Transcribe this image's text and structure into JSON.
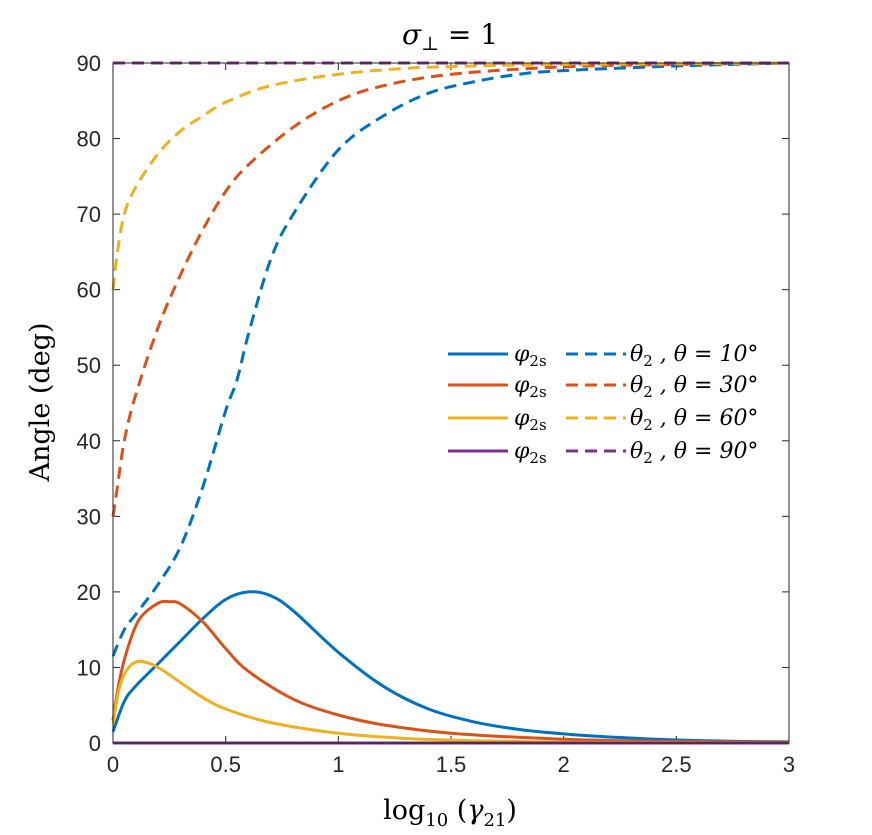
{
  "chart_data": {
    "type": "line",
    "title": "σ⊥ = 1",
    "title_parts": {
      "sym": "σ",
      "sub": "⊥",
      "rest": " = 1"
    },
    "xlabel": "log10 (γ21)",
    "xlabel_parts": {
      "fn": "log",
      "fn_sub": "10",
      "open": " (",
      "sym": "γ",
      "sym_sub": "21",
      "close": ")"
    },
    "ylabel": "Angle (deg)",
    "xlim": [
      0,
      3
    ],
    "ylim": [
      0,
      90
    ],
    "xticks": [
      0,
      0.5,
      1,
      1.5,
      2,
      2.5,
      3
    ],
    "xtick_labels": [
      "0",
      "0.5",
      "1",
      "1.5",
      "2",
      "2.5",
      "3"
    ],
    "yticks": [
      0,
      10,
      20,
      30,
      40,
      50,
      60,
      70,
      80,
      90
    ],
    "ytick_labels": [
      "0",
      "10",
      "20",
      "30",
      "40",
      "50",
      "60",
      "70",
      "80",
      "90"
    ],
    "legend_position": "right-center",
    "series": [
      {
        "name": "φ2s, θ = 10°",
        "theta_label": "θ = 10°",
        "kind": "phi",
        "style": "solid",
        "color": "#0072BD",
        "x": [
          0,
          0.05,
          0.1,
          0.2,
          0.3,
          0.4,
          0.5,
          0.6,
          0.7,
          0.8,
          1.0,
          1.2,
          1.4,
          1.6,
          1.8,
          2.0,
          2.2,
          2.5,
          2.8,
          3.0
        ],
        "y": [
          1.5,
          5.5,
          7.5,
          10.5,
          13.5,
          16.5,
          19,
          20,
          19.5,
          17.5,
          12,
          7.5,
          4.5,
          2.8,
          1.8,
          1.2,
          0.8,
          0.4,
          0.2,
          0.15
        ]
      },
      {
        "name": "θ2, θ = 10°",
        "theta_label": "θ = 10°",
        "kind": "theta",
        "style": "dashed",
        "color": "#0072BD",
        "x": [
          0,
          0.05,
          0.1,
          0.2,
          0.3,
          0.4,
          0.5,
          0.55,
          0.6,
          0.7,
          0.8,
          1.0,
          1.2,
          1.4,
          1.6,
          1.8,
          2.0,
          2.5,
          3.0
        ],
        "y": [
          11.5,
          15,
          17,
          21,
          26,
          34,
          44,
          48,
          54,
          64,
          70,
          78.5,
          83,
          86,
          87.5,
          88.5,
          89,
          89.6,
          90
        ]
      },
      {
        "name": "φ2s, θ = 30°",
        "theta_label": "θ = 30°",
        "kind": "phi",
        "style": "solid",
        "color": "#D95319",
        "x": [
          0,
          0.03,
          0.07,
          0.12,
          0.2,
          0.25,
          0.3,
          0.4,
          0.5,
          0.6,
          0.8,
          1.0,
          1.2,
          1.5,
          2.0,
          2.5,
          3.0
        ],
        "y": [
          3,
          8.5,
          13,
          16.5,
          18.5,
          18.7,
          18.4,
          16,
          12.5,
          9.5,
          5.8,
          3.7,
          2.4,
          1.3,
          0.5,
          0.2,
          0.1
        ]
      },
      {
        "name": "θ2, θ = 30°",
        "theta_label": "θ = 30°",
        "kind": "theta",
        "style": "dashed",
        "color": "#D95319",
        "x": [
          0,
          0.02,
          0.05,
          0.1,
          0.2,
          0.3,
          0.4,
          0.5,
          0.6,
          0.8,
          1.0,
          1.2,
          1.5,
          2.0,
          2.5,
          3.0
        ],
        "y": [
          30,
          34,
          40,
          46,
          55,
          62,
          68,
          73,
          76.5,
          81.5,
          85,
          87,
          88.5,
          89.5,
          89.8,
          90
        ]
      },
      {
        "name": "φ2s, θ = 60°",
        "theta_label": "θ = 60°",
        "kind": "phi",
        "style": "solid",
        "color": "#EDB120",
        "x": [
          0,
          0.03,
          0.07,
          0.12,
          0.2,
          0.3,
          0.4,
          0.5,
          0.7,
          1.0,
          1.3,
          1.6,
          2.0,
          2.5,
          3.0
        ],
        "y": [
          2.5,
          7.5,
          10,
          10.8,
          10,
          8,
          6,
          4.5,
          2.7,
          1.3,
          0.6,
          0.3,
          0.1,
          0.05,
          0
        ]
      },
      {
        "name": "θ2, θ = 60°",
        "theta_label": "θ = 60°",
        "kind": "theta",
        "style": "dashed",
        "color": "#EDB120",
        "x": [
          0,
          0.02,
          0.05,
          0.1,
          0.2,
          0.3,
          0.4,
          0.5,
          0.7,
          1.0,
          1.3,
          1.6,
          2.0,
          2.5,
          3.0
        ],
        "y": [
          60,
          65,
          70,
          73.5,
          78,
          81,
          83,
          84.8,
          87,
          88.5,
          89.3,
          89.6,
          89.8,
          89.9,
          90
        ]
      },
      {
        "name": "φ2s, θ = 90°",
        "theta_label": "θ = 90°",
        "kind": "phi",
        "style": "solid",
        "color": "#7E2F8E",
        "x": [
          0,
          3
        ],
        "y": [
          0,
          0
        ]
      },
      {
        "name": "θ2, θ = 90°",
        "theta_label": "θ = 90°",
        "kind": "theta",
        "style": "dashed",
        "color": "#7E2F8E",
        "x": [
          0,
          3
        ],
        "y": [
          90,
          90
        ]
      }
    ],
    "legend_entries": [
      {
        "phi": "φ",
        "phi_sub": "2s",
        "theta": "θ",
        "theta_sub": "2",
        "label": " , θ = 10°",
        "color": "#0072BD"
      },
      {
        "phi": "φ",
        "phi_sub": "2s",
        "theta": "θ",
        "theta_sub": "2",
        "label": " , θ = 30°",
        "color": "#D95319"
      },
      {
        "phi": "φ",
        "phi_sub": "2s",
        "theta": "θ",
        "theta_sub": "2",
        "label": " , θ = 60°",
        "color": "#EDB120"
      },
      {
        "phi": "φ",
        "phi_sub": "2s",
        "theta": "θ",
        "theta_sub": "2",
        "label": " , θ = 90°",
        "color": "#7E2F8E"
      }
    ]
  }
}
